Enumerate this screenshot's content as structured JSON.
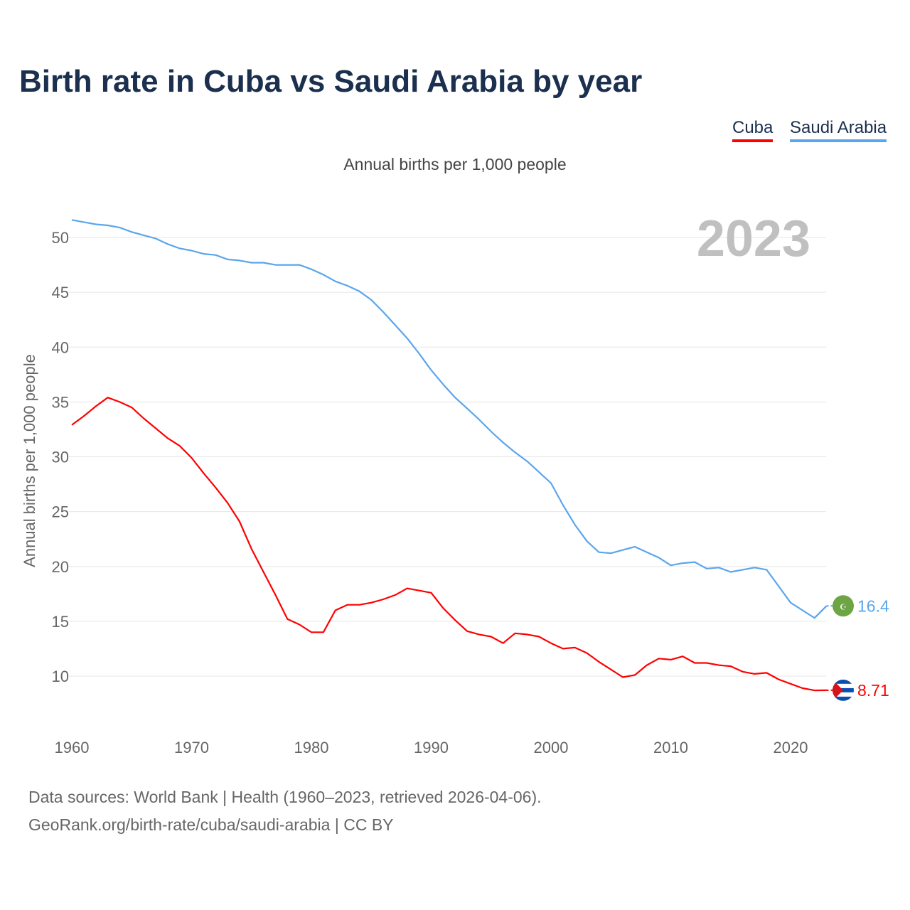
{
  "title": "Birth rate in Cuba vs Saudi Arabia by year",
  "subtitle": "Annual births per 1,000 people",
  "sources": [
    "Data sources: World Bank | Health (1960–2023, retrieved 2026-04-06).",
    "GeoRank.org/birth-rate/cuba/saudi-arabia | CC BY"
  ],
  "chart_data": {
    "type": "line",
    "title": "Birth rate in Cuba vs Saudi Arabia by year",
    "ylabel": "Annual births per 1,000 people",
    "xlabel": "",
    "year_label": "2023",
    "xlim": [
      1960,
      2023
    ],
    "ylim": [
      6,
      53
    ],
    "yticks": [
      10,
      15,
      20,
      25,
      30,
      35,
      40,
      45,
      50
    ],
    "xticks": [
      1960,
      1970,
      1980,
      1990,
      2000,
      2010,
      2020
    ],
    "grid": true,
    "legend": "top-right",
    "x": [
      1960,
      1961,
      1962,
      1963,
      1964,
      1965,
      1966,
      1967,
      1968,
      1969,
      1970,
      1971,
      1972,
      1973,
      1974,
      1975,
      1976,
      1977,
      1978,
      1979,
      1980,
      1981,
      1982,
      1983,
      1984,
      1985,
      1986,
      1987,
      1988,
      1989,
      1990,
      1991,
      1992,
      1993,
      1994,
      1995,
      1996,
      1997,
      1998,
      1999,
      2000,
      2001,
      2002,
      2003,
      2004,
      2005,
      2006,
      2007,
      2008,
      2009,
      2010,
      2011,
      2012,
      2013,
      2014,
      2015,
      2016,
      2017,
      2018,
      2019,
      2020,
      2021,
      2022,
      2023
    ],
    "series": [
      {
        "name": "Cuba",
        "color": "#ff0000",
        "end_label": "8.71",
        "values": [
          32.9,
          33.7,
          34.6,
          35.4,
          35.0,
          34.5,
          33.5,
          32.6,
          31.7,
          31.0,
          29.9,
          28.5,
          27.2,
          25.8,
          24.1,
          21.6,
          19.5,
          17.4,
          15.2,
          14.7,
          14.0,
          14.0,
          16.0,
          16.5,
          16.5,
          16.7,
          17.0,
          17.4,
          18.0,
          17.8,
          17.6,
          16.2,
          15.1,
          14.1,
          13.8,
          13.6,
          13.0,
          13.9,
          13.8,
          13.6,
          13.0,
          12.5,
          12.6,
          12.1,
          11.3,
          10.6,
          9.9,
          10.1,
          11.0,
          11.6,
          11.5,
          11.8,
          11.2,
          11.2,
          11.0,
          10.9,
          10.4,
          10.2,
          10.3,
          9.7,
          9.3,
          8.9,
          8.7,
          8.71
        ]
      },
      {
        "name": "Saudi Arabia",
        "color": "#5aa5ec",
        "end_label": "16.4",
        "values": [
          51.6,
          51.4,
          51.2,
          51.1,
          50.9,
          50.5,
          50.2,
          49.9,
          49.4,
          49.0,
          48.8,
          48.5,
          48.4,
          48.0,
          47.9,
          47.7,
          47.7,
          47.5,
          47.5,
          47.5,
          47.1,
          46.6,
          46.0,
          45.6,
          45.1,
          44.3,
          43.2,
          42.0,
          40.8,
          39.4,
          37.9,
          36.6,
          35.4,
          34.4,
          33.4,
          32.3,
          31.3,
          30.4,
          29.6,
          28.6,
          27.6,
          25.6,
          23.8,
          22.3,
          21.3,
          21.2,
          21.5,
          21.8,
          21.3,
          20.8,
          20.1,
          20.3,
          20.4,
          19.8,
          19.9,
          19.5,
          19.7,
          19.9,
          19.7,
          18.2,
          16.7,
          16.0,
          15.3,
          16.4
        ]
      }
    ]
  }
}
